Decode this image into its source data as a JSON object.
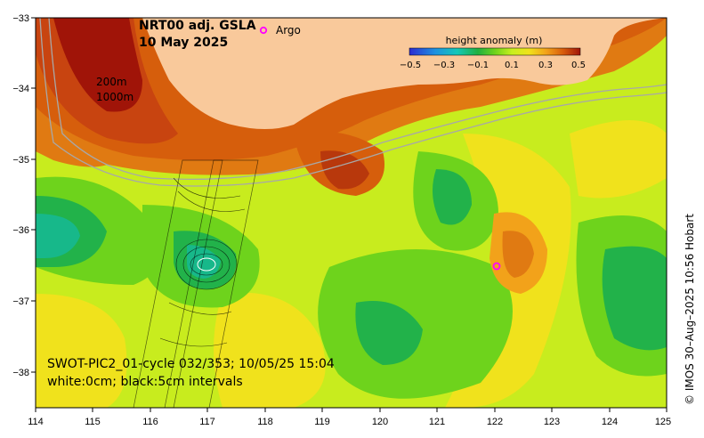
{
  "title": {
    "line1": "NRT00 adj. GSLA",
    "line2": "10 May 2025"
  },
  "argo_label": "Argo",
  "colorbar": {
    "title": "height anomaly (m)",
    "ticks": [
      "−0.5",
      "−0.3",
      "−0.1",
      "0.1",
      "0.3",
      "0.5"
    ],
    "range": [
      -0.5,
      0.5
    ]
  },
  "isobaths": {
    "shallow": "200m",
    "deep": "1000m"
  },
  "swot": {
    "line1": "SWOT-PIC2_01-cycle 032/353; 10/05/25 15:04",
    "line2": "white:0cm; black:5cm intervals"
  },
  "x_ticks": [
    "114",
    "115",
    "116",
    "117",
    "118",
    "119",
    "120",
    "121",
    "122",
    "123",
    "124",
    "125"
  ],
  "y_ticks": [
    "−33",
    "−34",
    "−35",
    "−36",
    "−37",
    "−38"
  ],
  "credit": "© IMOS 30–Aug–2025 10:56 Hobart",
  "colors": {
    "land": "#f9c99b",
    "frame": "#000000",
    "isobath": "#a8a8a8",
    "argo": "#ff00ff"
  }
}
